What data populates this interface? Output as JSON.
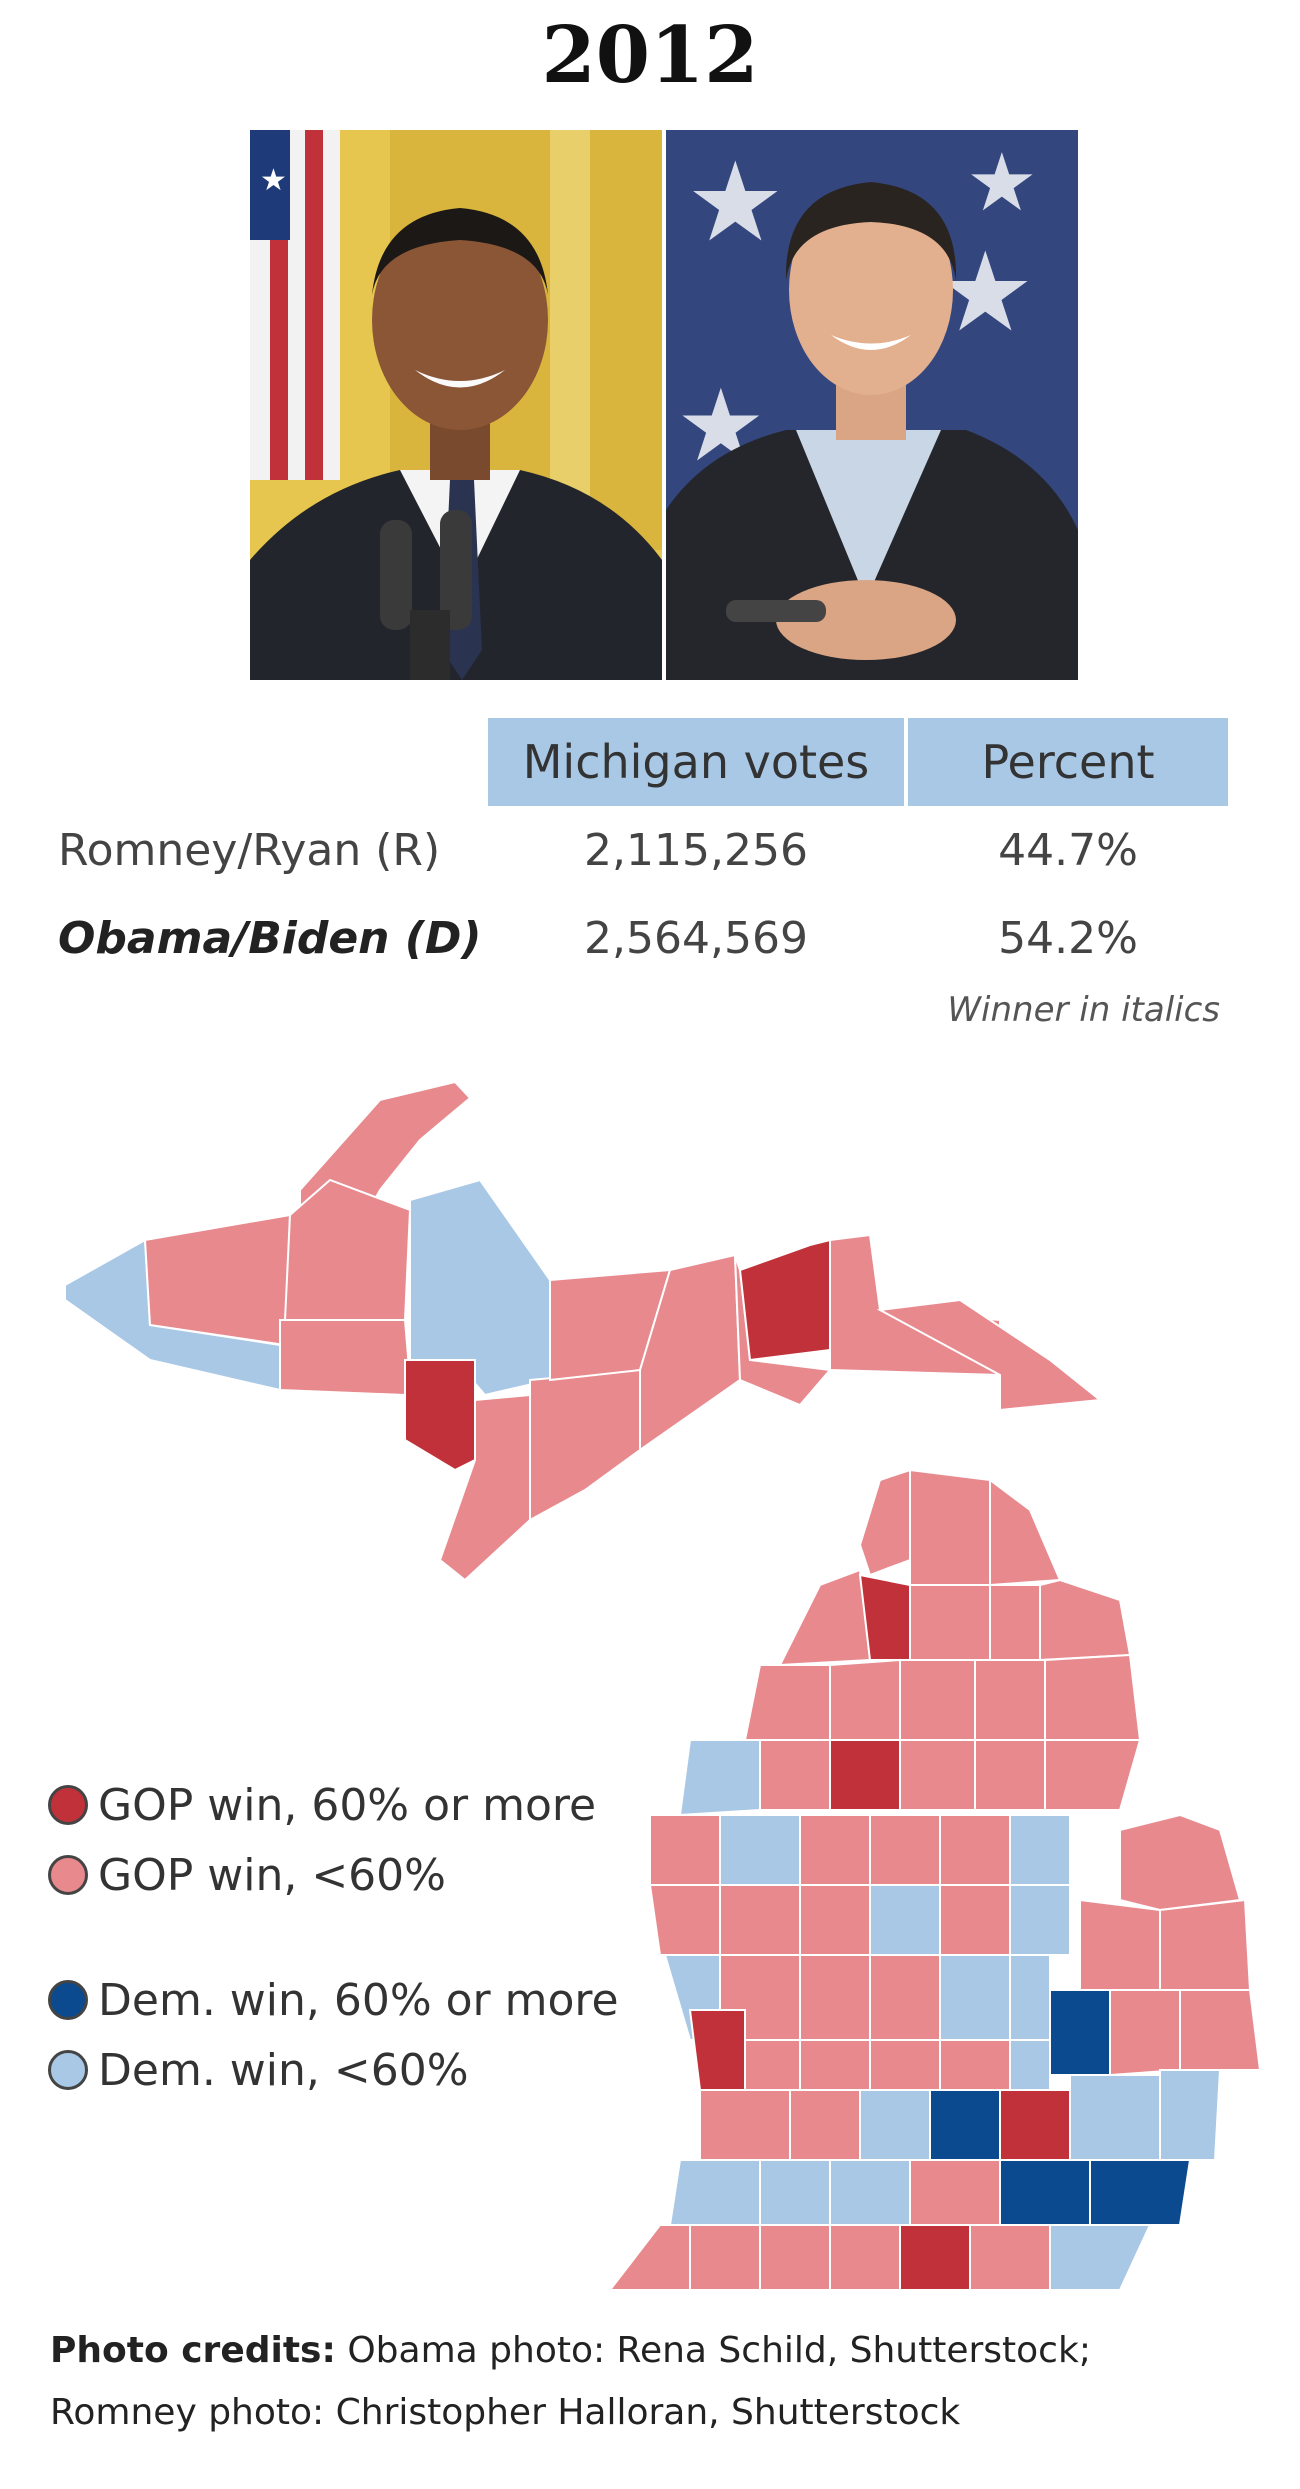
{
  "title": "2012",
  "photos": {
    "obama_alt": "Obama photo",
    "romney_alt": "Romney photo"
  },
  "table": {
    "headers": [
      "Michigan votes",
      "Percent"
    ],
    "rows": [
      {
        "candidate": "Romney/Ryan (R)",
        "votes": "2,115,256",
        "percent": "44.7%",
        "winner": false
      },
      {
        "candidate": "Obama/Biden (D)",
        "votes": "2,564,569",
        "percent": "54.2%",
        "winner": true
      }
    ],
    "note": "Winner in italics"
  },
  "legend": [
    {
      "label": "GOP win, 60% or more",
      "color": "#c0313a"
    },
    {
      "label": "GOP win, <60%",
      "color": "#e8898e"
    },
    {
      "label": "Dem. win, 60% or more",
      "color": "#0b4a8f"
    },
    {
      "label": "Dem. win, <60%",
      "color": "#a9c8e6"
    }
  ],
  "credits": {
    "label": "Photo credits:",
    "line1": "Obama photo: Rena Schild, Shutterstock;",
    "line2": "Romney photo: Christopher Halloran, Shutterstock"
  }
}
